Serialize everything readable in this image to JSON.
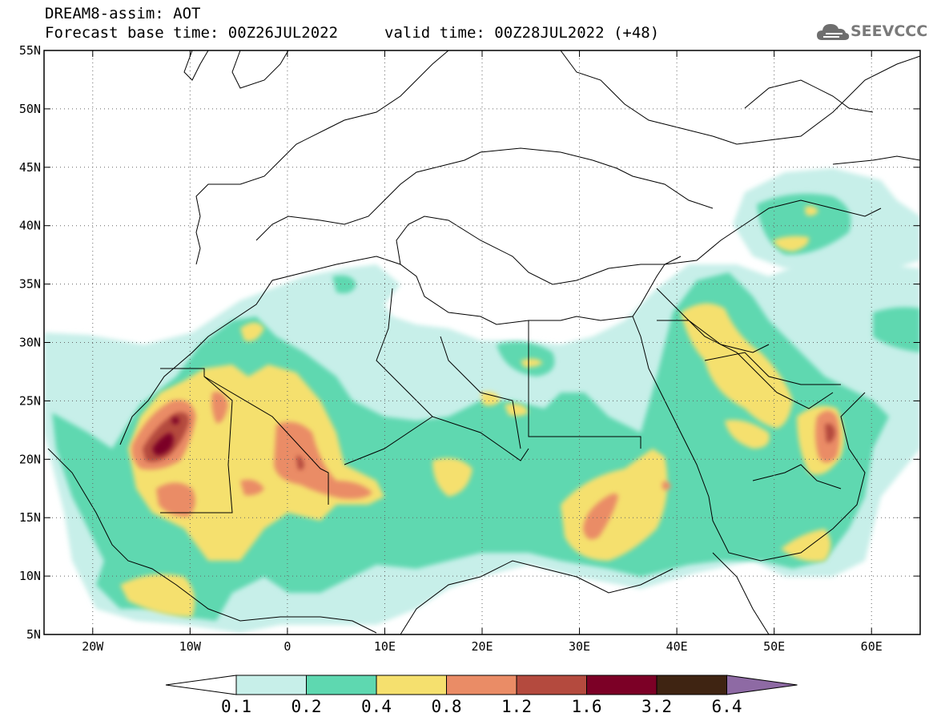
{
  "header": {
    "line1": "DREAM8-assim: AOT",
    "line2_left": "Forecast base time: 00Z26JUL2022",
    "line2_right": "valid time: 00Z28JUL2022 (+48)"
  },
  "logo": {
    "text": "SEEVCCC",
    "icon": "cloud-icon"
  },
  "map": {
    "lon_range": [
      -25,
      65
    ],
    "lat_range": [
      5,
      55
    ],
    "lat_ticks": [
      {
        "value": 55,
        "label": "55N"
      },
      {
        "value": 50,
        "label": "50N"
      },
      {
        "value": 45,
        "label": "45N"
      },
      {
        "value": 40,
        "label": "40N"
      },
      {
        "value": 35,
        "label": "35N"
      },
      {
        "value": 30,
        "label": "30N"
      },
      {
        "value": 25,
        "label": "25N"
      },
      {
        "value": 20,
        "label": "20N"
      },
      {
        "value": 15,
        "label": "15N"
      },
      {
        "value": 10,
        "label": "10N"
      },
      {
        "value": 5,
        "label": "5N"
      }
    ],
    "lon_ticks": [
      {
        "value": -20,
        "label": "20W"
      },
      {
        "value": -10,
        "label": "10W"
      },
      {
        "value": 0,
        "label": "0"
      },
      {
        "value": 10,
        "label": "10E"
      },
      {
        "value": 20,
        "label": "20E"
      },
      {
        "value": 30,
        "label": "30E"
      },
      {
        "value": 40,
        "label": "40E"
      },
      {
        "value": 50,
        "label": "50E"
      },
      {
        "value": 60,
        "label": "60E"
      }
    ],
    "gridlines": "dotted"
  },
  "colorbar": {
    "labels": [
      "0.1",
      "0.2",
      "0.4",
      "0.8",
      "1.2",
      "1.6",
      "3.2",
      "6.4"
    ],
    "colors": [
      "#ffffff",
      "#c7efe9",
      "#5ed8b0",
      "#f5e06e",
      "#ea8c66",
      "#b44a3e",
      "#7c0026",
      "#3f2412",
      "#8e6aa4"
    ]
  }
}
